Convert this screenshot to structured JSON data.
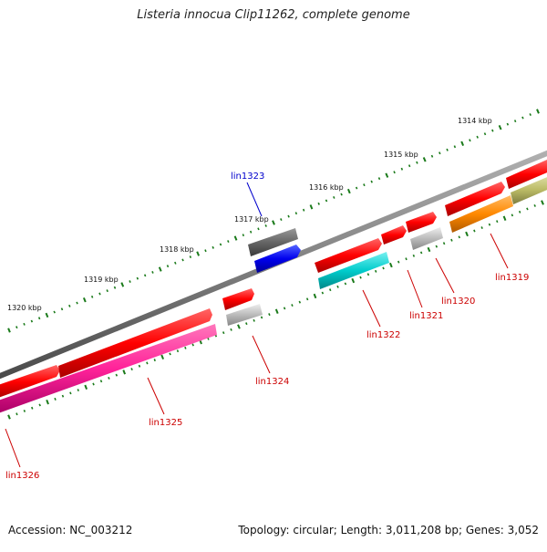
{
  "map": {
    "title": "Listeria innocua Clip11262, complete genome",
    "accession_text": "Accession: NC_003212",
    "summary_text": "Topology: circular; Length: 3,011,208 bp; Genes: 3,052"
  },
  "kbp_labels": [
    "1314 kbp",
    "1315 kbp",
    "1316 kbp",
    "1317 kbp",
    "1318 kbp",
    "1319 kbp",
    "1320 kbp"
  ],
  "gene_labels": [
    {
      "id": "lin1319",
      "text": "lin1319",
      "color": "#cc0000"
    },
    {
      "id": "lin1320",
      "text": "lin1320",
      "color": "#cc0000"
    },
    {
      "id": "lin1321",
      "text": "lin1321",
      "color": "#cc0000"
    },
    {
      "id": "lin1322",
      "text": "lin1322",
      "color": "#cc0000"
    },
    {
      "id": "lin1323",
      "text": "lin1323",
      "color": "#0000cc"
    },
    {
      "id": "lin1324",
      "text": "lin1324",
      "color": "#cc0000"
    },
    {
      "id": "lin1325",
      "text": "lin1325",
      "color": "#cc0000"
    },
    {
      "id": "lin1326",
      "text": "lin1326",
      "color": "#cc0000"
    }
  ],
  "colors": {
    "backbone": "#808080",
    "cds": "#ff0000",
    "rrna_cyan": "#00cccc",
    "magenta": "#ff2299",
    "orange": "#ff8800",
    "olive": "#bbbb66",
    "grey_light": "#bbbbbb",
    "grey_dark": "#666666",
    "blue": "#0000ee",
    "tick": "#1a7a1a"
  }
}
